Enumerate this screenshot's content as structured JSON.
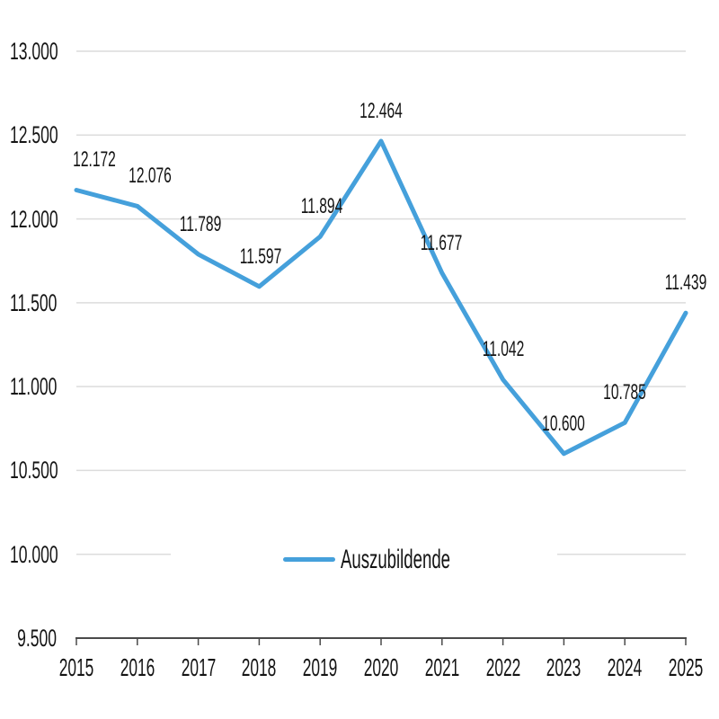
{
  "chart_data": {
    "type": "line",
    "title": "",
    "categories": [
      "2015",
      "2016",
      "2017",
      "2018",
      "2019",
      "2020",
      "2021",
      "2022",
      "2023",
      "2024",
      "2025"
    ],
    "series": [
      {
        "name": "Auszubildende",
        "values": [
          12172,
          12076,
          11789,
          11597,
          11894,
          12464,
          11677,
          11042,
          10600,
          10785,
          11439
        ],
        "value_labels": [
          "12.172",
          "12.076",
          "11.789",
          "11.597",
          "11.894",
          "12.464",
          "11.677",
          "11.042",
          "10.600",
          "10.785",
          "11.439"
        ]
      }
    ],
    "y_axis": {
      "min": 9500,
      "max": 13000,
      "tick_values": [
        13000,
        12500,
        12000,
        11500,
        11000,
        10500,
        10000,
        9500
      ],
      "tick_labels": [
        "13.000",
        "12.500",
        "12.000",
        "11.500",
        "11.000",
        "10.500",
        "10.000",
        "9.500"
      ]
    },
    "x_axis": {
      "tick_labels": [
        "2015",
        "2016",
        "2017",
        "2018",
        "2019",
        "2020",
        "2021",
        "2022",
        "2023",
        "2024",
        "2025"
      ]
    },
    "legend": {
      "position": "bottom-center-overlay",
      "entries": [
        "Auszubildende"
      ]
    },
    "grid": "horizontal",
    "number_format": "de-DE thousands dot",
    "colors": {
      "series": "#45A0DB",
      "grid": "#DCDCDC",
      "axis": "#4A4A4A",
      "text": "#141414",
      "background": "#FFFFFF"
    }
  }
}
